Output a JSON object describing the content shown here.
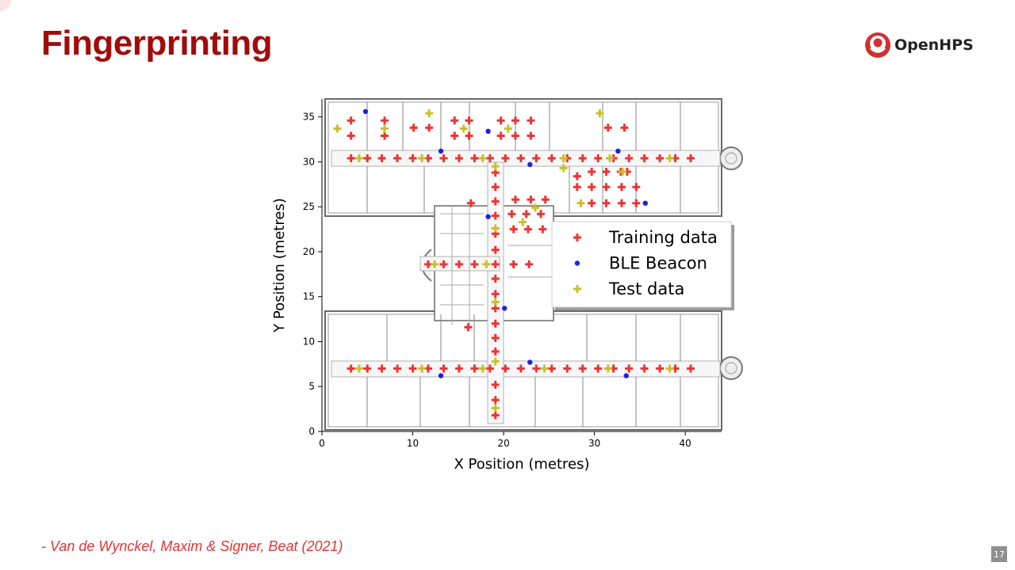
{
  "slide": {
    "title": "Fingerprinting",
    "citation": "- Van de Wynckel, Maxim & Signer, Beat (2021)",
    "page_number": "17"
  },
  "logo": {
    "text": "OpenHPS",
    "icon": "openhps-logo-icon",
    "color": "#d32f2f"
  },
  "colors": {
    "title": "#a30b0b",
    "training": "#ee3333",
    "beacon": "#1f1fe6",
    "test": "#c9c12b",
    "citation": "#e03535"
  },
  "chart_data": {
    "type": "scatter",
    "title": "",
    "xlabel": "X Position (metres)",
    "ylabel": "Y Position (metres)",
    "xlim": [
      0,
      44
    ],
    "ylim": [
      0,
      37
    ],
    "xticks": [
      0,
      10,
      20,
      30,
      40
    ],
    "yticks": [
      0,
      5,
      10,
      15,
      20,
      25,
      30,
      35
    ],
    "grid": false,
    "background": "floor plan",
    "legend": {
      "position": "right",
      "entries": [
        {
          "label": "Training data",
          "marker": "plus",
          "color": "#ee3333"
        },
        {
          "label": "BLE Beacon",
          "marker": "dot",
          "color": "#1f1fe6"
        },
        {
          "label": "Test data",
          "marker": "plus",
          "color": "#c9c12b"
        }
      ]
    },
    "series": [
      {
        "name": "Training data",
        "marker": "plus",
        "color": "#ee3333",
        "points": [
          [
            3.2,
            34.6
          ],
          [
            6.9,
            34.6
          ],
          [
            14.6,
            34.6
          ],
          [
            16.2,
            34.6
          ],
          [
            19.7,
            34.6
          ],
          [
            21.3,
            34.6
          ],
          [
            23,
            34.6
          ],
          [
            10.1,
            33.8
          ],
          [
            11.8,
            33.8
          ],
          [
            31.5,
            33.8
          ],
          [
            33.3,
            33.8
          ],
          [
            3.2,
            32.9
          ],
          [
            6.9,
            32.9
          ],
          [
            14.6,
            32.9
          ],
          [
            16.2,
            32.9
          ],
          [
            19.7,
            32.9
          ],
          [
            21.3,
            32.9
          ],
          [
            23,
            32.9
          ],
          [
            3.2,
            30.4
          ],
          [
            5,
            30.4
          ],
          [
            6.6,
            30.4
          ],
          [
            8.3,
            30.4
          ],
          [
            10,
            30.4
          ],
          [
            11.7,
            30.4
          ],
          [
            13.4,
            30.4
          ],
          [
            15.1,
            30.4
          ],
          [
            16.8,
            30.4
          ],
          [
            18.5,
            30.4
          ],
          [
            20.2,
            30.4
          ],
          [
            21.9,
            30.4
          ],
          [
            23.6,
            30.4
          ],
          [
            25.3,
            30.4
          ],
          [
            27,
            30.4
          ],
          [
            28.7,
            30.4
          ],
          [
            30.4,
            30.4
          ],
          [
            32.1,
            30.4
          ],
          [
            33.8,
            30.4
          ],
          [
            35.5,
            30.4
          ],
          [
            37.2,
            30.4
          ],
          [
            38.9,
            30.4
          ],
          [
            40.6,
            30.4
          ],
          [
            19.1,
            28.8
          ],
          [
            19.1,
            27.2
          ],
          [
            19.1,
            25.6
          ],
          [
            19.1,
            24
          ],
          [
            19.1,
            22
          ],
          [
            19.1,
            20.2
          ],
          [
            19.1,
            18.6
          ],
          [
            19.1,
            17
          ],
          [
            19.1,
            15.3
          ],
          [
            19.1,
            13.7
          ],
          [
            19.1,
            12
          ],
          [
            19.1,
            10.4
          ],
          [
            19.1,
            8.9
          ],
          [
            19.1,
            5.2
          ],
          [
            19.1,
            3.5
          ],
          [
            19.1,
            1.8
          ],
          [
            28.1,
            28.4
          ],
          [
            29.7,
            28.9
          ],
          [
            31.3,
            28.9
          ],
          [
            32.9,
            28.9
          ],
          [
            33.6,
            28.9
          ],
          [
            28.1,
            27.2
          ],
          [
            29.7,
            27.2
          ],
          [
            31.3,
            27.2
          ],
          [
            33,
            27.2
          ],
          [
            34.6,
            27.2
          ],
          [
            29.7,
            25.4
          ],
          [
            31.3,
            25.4
          ],
          [
            33,
            25.4
          ],
          [
            34.6,
            25.4
          ],
          [
            21.3,
            25.8
          ],
          [
            23,
            25.8
          ],
          [
            24.6,
            25.8
          ],
          [
            16.4,
            25.4
          ],
          [
            20.9,
            24.2
          ],
          [
            22.5,
            24.2
          ],
          [
            24.1,
            24.2
          ],
          [
            21.1,
            22.5
          ],
          [
            22.7,
            22.5
          ],
          [
            24.3,
            22.5
          ],
          [
            11.7,
            18.6
          ],
          [
            13.4,
            18.6
          ],
          [
            15.1,
            18.6
          ],
          [
            16.8,
            18.6
          ],
          [
            21.1,
            18.6
          ],
          [
            22.8,
            18.6
          ],
          [
            16.1,
            11.6
          ],
          [
            3.2,
            7
          ],
          [
            5,
            7
          ],
          [
            6.6,
            7
          ],
          [
            8.3,
            7
          ],
          [
            10,
            7
          ],
          [
            11.7,
            7
          ],
          [
            13.4,
            7
          ],
          [
            15.1,
            7
          ],
          [
            16.8,
            7
          ],
          [
            18.5,
            7
          ],
          [
            20.2,
            7
          ],
          [
            21.9,
            7
          ],
          [
            23.6,
            7
          ],
          [
            25.3,
            7
          ],
          [
            27,
            7
          ],
          [
            28.7,
            7
          ],
          [
            30.4,
            7
          ],
          [
            32.1,
            7
          ],
          [
            33.8,
            7
          ],
          [
            35.5,
            7
          ],
          [
            37.2,
            7
          ],
          [
            38.9,
            7
          ],
          [
            40.6,
            7
          ]
        ]
      },
      {
        "name": "BLE Beacon",
        "marker": "dot",
        "color": "#1f1fe6",
        "points": [
          [
            4.8,
            35.6
          ],
          [
            18.3,
            33.4
          ],
          [
            13.1,
            31.2
          ],
          [
            32.6,
            31.2
          ],
          [
            22.9,
            29.7
          ],
          [
            18.3,
            23.9
          ],
          [
            35.6,
            25.4
          ],
          [
            20.1,
            13.7
          ],
          [
            22.9,
            7.7
          ],
          [
            13.1,
            6.2
          ],
          [
            33.5,
            6.2
          ]
        ]
      },
      {
        "name": "Test data",
        "marker": "plus",
        "color": "#c9c12b",
        "points": [
          [
            1.7,
            33.7
          ],
          [
            6.9,
            33.7
          ],
          [
            11.8,
            35.4
          ],
          [
            15.6,
            33.7
          ],
          [
            20.5,
            33.7
          ],
          [
            30.6,
            35.4
          ],
          [
            4.1,
            30.4
          ],
          [
            11,
            30.4
          ],
          [
            17.7,
            30.4
          ],
          [
            26.6,
            30.4
          ],
          [
            31.7,
            30.4
          ],
          [
            38.3,
            30.4
          ],
          [
            19.1,
            29.5
          ],
          [
            26.6,
            29.3
          ],
          [
            33.1,
            28.9
          ],
          [
            28.5,
            25.4
          ],
          [
            23.5,
            24.9
          ],
          [
            22.1,
            23.3
          ],
          [
            19.1,
            22.6
          ],
          [
            12.4,
            18.6
          ],
          [
            18.1,
            18.6
          ],
          [
            19.1,
            14.4
          ],
          [
            19.1,
            7.8
          ],
          [
            4.1,
            7
          ],
          [
            11,
            7
          ],
          [
            17.7,
            7
          ],
          [
            24.5,
            7
          ],
          [
            31.5,
            7
          ],
          [
            38.3,
            7
          ],
          [
            19.1,
            2.6
          ]
        ]
      }
    ]
  }
}
